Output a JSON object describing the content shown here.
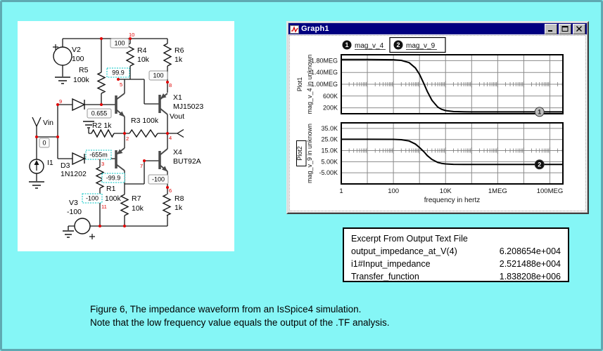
{
  "page": {
    "background": "#85f6f6",
    "border_color": "#5fa9b2",
    "caption": {
      "line1": "Figure 6, The impedance waveform from an IsSpice4 simulation.",
      "line2": "Note that the low frequency value equals the output of the .TF analysis."
    }
  },
  "schematic": {
    "labels": {
      "v2": "V2",
      "v2v": "100",
      "r5": "R5",
      "r5v": "100k",
      "r4": "R4",
      "r4v": "10k",
      "r6": "R6",
      "r6v": "1k",
      "vin": "Vin",
      "r2": "R2 1k",
      "d3": "D3",
      "d3v": "1N1202",
      "i1": "I1",
      "r3": "R3 100k",
      "x1": "X1",
      "x1v": "MJ15023",
      "vout": "Vout",
      "x4": "X4",
      "x4v": "BUT92A",
      "r1": "R1",
      "r1v": "100k",
      "r7": "R7",
      "r7v": "10k",
      "r8": "R8",
      "r8v": "1k",
      "v3": "V3",
      "v3v": "-100"
    },
    "nodes": {
      "n2": "2",
      "n3": "3",
      "n4": "4",
      "n5": "5",
      "n6": "6",
      "n7": "7",
      "n8": "8",
      "n9": "9",
      "n10": "10",
      "n11": "11"
    },
    "probes": {
      "b1": "100",
      "b2": "99.9",
      "b3": "100",
      "b4": "0.655",
      "b5": "0",
      "b6": "-655m",
      "b7": "-99.9",
      "b8": "-100",
      "b9": "-100"
    }
  },
  "graph_window": {
    "title": "Graph1",
    "legend": [
      {
        "marker": "1",
        "label": "mag_v_4"
      },
      {
        "marker": "2",
        "label": "mag_v_9"
      }
    ]
  },
  "chart_data": {
    "type": "line",
    "x_scale": "log",
    "x_range_hz": [
      1,
      316000000
    ],
    "xlabel": "frequency in hertz",
    "xticks": [
      {
        "f": 1,
        "label": "1"
      },
      {
        "f": 100,
        "label": "100"
      },
      {
        "f": 10000,
        "label": "10K"
      },
      {
        "f": 1000000,
        "label": "1MEG"
      },
      {
        "f": 100000000,
        "label": "100MEG"
      }
    ],
    "plots": [
      {
        "plot_label": "Plot1",
        "plot_label_boxed": false,
        "ylabel": "mag_v_4 in unknown",
        "ylim": [
          0,
          2000000
        ],
        "yticks": [
          {
            "v": 1800000,
            "label": "1.80MEG"
          },
          {
            "v": 1400000,
            "label": "1.40MEG"
          },
          {
            "v": 1000000,
            "label": "1.00MEG"
          },
          {
            "v": 600000,
            "label": "600K"
          },
          {
            "v": 200000,
            "label": "200K"
          }
        ],
        "minor_tick_value": 1000000,
        "series": {
          "name": "mag_v_4",
          "points": [
            [
              1,
              1838000
            ],
            [
              10,
              1838000
            ],
            [
              100,
              1831000
            ],
            [
              200,
              1810000
            ],
            [
              400,
              1733000
            ],
            [
              700,
              1553000
            ],
            [
              1000,
              1339000
            ],
            [
              1500,
              1007000
            ],
            [
              2000,
              755000
            ],
            [
              3000,
              455000
            ],
            [
              5000,
              227000
            ],
            [
              7000,
              150000
            ],
            [
              10000,
              107000
            ],
            [
              20000,
              73000
            ],
            [
              50000,
              64000
            ],
            [
              100000,
              62500
            ],
            [
              1000000,
              62100
            ],
            [
              10000000,
              62090
            ],
            [
              100000000,
              62087
            ],
            [
              316000000,
              62087
            ]
          ]
        },
        "marker": {
          "label": "1",
          "f": 40000000,
          "v": 62090,
          "fill": "#bdbdbd",
          "text": "#222"
        }
      },
      {
        "plot_label": "Plot2",
        "plot_label_boxed": true,
        "ylabel": "mag_v_9 in unknown",
        "ylim": [
          -15000,
          40000
        ],
        "yticks": [
          {
            "v": 35000,
            "label": "35.0K"
          },
          {
            "v": 25000,
            "label": "25.0K"
          },
          {
            "v": 15000,
            "label": "15.0K"
          },
          {
            "v": 5000,
            "label": "5.00K"
          },
          {
            "v": -5000,
            "label": "-5.00K"
          }
        ],
        "minor_tick_value": 15000,
        "series": {
          "name": "mag_v_9",
          "points": [
            [
              1,
              25210
            ],
            [
              10,
              25210
            ],
            [
              100,
              25130
            ],
            [
              200,
              24840
            ],
            [
              400,
              23700
            ],
            [
              700,
              20900
            ],
            [
              1000,
              17800
            ],
            [
              1500,
              13850
            ],
            [
              2000,
              10500
            ],
            [
              3000,
              7050
            ],
            [
              5000,
              4350
            ],
            [
              7000,
              3500
            ],
            [
              10000,
              3000
            ],
            [
              20000,
              2650
            ],
            [
              50000,
              2530
            ],
            [
              100000,
              2520
            ],
            [
              1000000,
              2515
            ],
            [
              10000000,
              2515
            ],
            [
              100000000,
              2515
            ],
            [
              316000000,
              2515
            ]
          ]
        },
        "marker": {
          "label": "2",
          "f": 40000000,
          "v": 2515,
          "fill": "#111111",
          "text": "#ffffff"
        }
      }
    ]
  },
  "excerpt": {
    "title": "Excerpt From Output Text File",
    "rows": [
      {
        "name": "output_impedance_at_V(4)",
        "value": "6.208654e+004"
      },
      {
        "name": "i1#Input_impedance",
        "value": "2.521488e+004"
      },
      {
        "name": "Transfer_function",
        "value": "1.838208e+006"
      }
    ]
  }
}
